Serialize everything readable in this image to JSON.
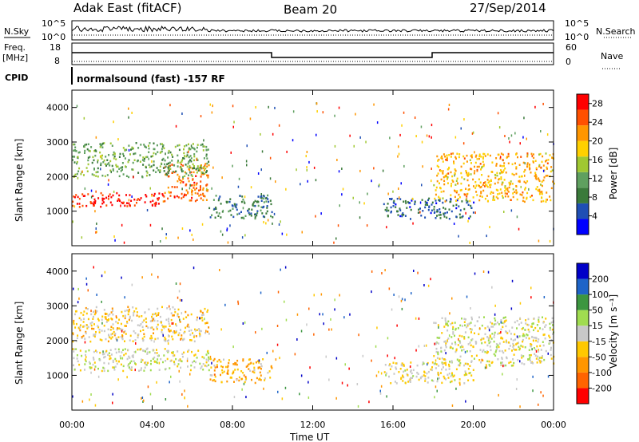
{
  "header": {
    "station": "Adak East (fitACF)",
    "beam": "Beam 20",
    "date": "27/Sep/2014"
  },
  "labels": {
    "n_sky": "N.Sky",
    "n_search": "N.Search",
    "freq": "Freq.",
    "freq_unit": "[MHz]",
    "nave": "Nave",
    "cpid": "CPID",
    "cpid_text": "normalsound (fast) -157 RF",
    "x_axis": "Time UT",
    "y_axis": "Slant Range [km]"
  },
  "noise_panel": {
    "left_ticks": [
      "10^5",
      "10^0"
    ],
    "right_ticks": [
      "10^5",
      "10^0"
    ]
  },
  "freq_panel": {
    "left_ticks": [
      "18",
      "8"
    ],
    "right_ticks": [
      "60",
      "0"
    ]
  },
  "colors": {
    "power_scale": [
      "#0000ff",
      "#1f4fb4",
      "#3a7a3a",
      "#5fa05f",
      "#a0c832",
      "#ffd000",
      "#ff9600",
      "#ff5000",
      "#ff0000"
    ],
    "velocity_scale": [
      "#ff0000",
      "#ff6400",
      "#ff9600",
      "#ffc800",
      "#c8c8c8",
      "#a0dc50",
      "#3c9640",
      "#1e64c8",
      "#0000c8"
    ]
  },
  "chart_data": [
    {
      "type": "heatmap",
      "title": "Power",
      "ylabel": "Slant Range [km]",
      "xlabel": "Time UT",
      "x_ticks": [
        "00:00",
        "04:00",
        "08:00",
        "12:00",
        "16:00",
        "20:00",
        "00:00"
      ],
      "y_ticks": [
        "1000",
        "2000",
        "3000",
        "4000"
      ],
      "ylim": [
        0,
        4500
      ],
      "xlim_hours": [
        0,
        24
      ],
      "colorbar": {
        "label": "Power [dB]",
        "unit": "dB",
        "ticks": [
          "4",
          "8",
          "12",
          "16",
          "20",
          "24",
          "28"
        ],
        "range": [
          0,
          30
        ]
      },
      "features": [
        {
          "name": "strong-band",
          "t_start": 0.0,
          "t_end": 4.5,
          "range_start": 1150,
          "range_end": 1550,
          "level": 28
        },
        {
          "name": "rising-band",
          "t_start": 4.5,
          "t_end": 6.8,
          "range_start": 1300,
          "range_end": 2400,
          "level": 24
        },
        {
          "name": "upper-scatter",
          "t_start": 0.0,
          "t_end": 6.8,
          "range_start": 2000,
          "range_end": 3000,
          "level": 12
        },
        {
          "name": "midday-echoes",
          "t_start": 6.8,
          "t_end": 10.0,
          "range_start": 800,
          "range_end": 1500,
          "level": 8
        },
        {
          "name": "afternoon-echoes",
          "t_start": 15.5,
          "t_end": 20.0,
          "range_start": 800,
          "range_end": 1400,
          "level": 6
        },
        {
          "name": "evening-band",
          "t_start": 18.0,
          "t_end": 24.0,
          "range_start": 1300,
          "range_end": 2700,
          "level": 20
        }
      ]
    },
    {
      "type": "heatmap",
      "title": "Velocity",
      "ylabel": "Slant Range [km]",
      "xlabel": "Time UT",
      "x_ticks": [
        "00:00",
        "04:00",
        "08:00",
        "12:00",
        "16:00",
        "20:00",
        "00:00"
      ],
      "y_ticks": [
        "1000",
        "2000",
        "3000",
        "4000"
      ],
      "ylim": [
        0,
        4500
      ],
      "xlim_hours": [
        0,
        24
      ],
      "colorbar": {
        "label": "Velocity [m s⁻¹]",
        "unit": "m s-1",
        "ticks": [
          "200",
          "100",
          "50",
          "15",
          "-15",
          "-50",
          "-100",
          "-200"
        ],
        "range": [
          -250,
          250
        ]
      },
      "features": [
        {
          "name": "ground-scatter",
          "t_start": 0.0,
          "t_end": 6.8,
          "range_start": 1150,
          "range_end": 1800,
          "level": 0
        },
        {
          "name": "upper-scatter",
          "t_start": 0.0,
          "t_end": 6.8,
          "range_start": 2000,
          "range_end": 3000,
          "level": -40
        },
        {
          "name": "midday-echoes",
          "t_start": 6.8,
          "t_end": 10.0,
          "range_start": 800,
          "range_end": 1500,
          "level": -80
        },
        {
          "name": "afternoon-echoes",
          "t_start": 15.5,
          "t_end": 20.0,
          "range_start": 800,
          "range_end": 1400,
          "level": -20
        },
        {
          "name": "evening-band",
          "t_start": 18.0,
          "t_end": 24.0,
          "range_start": 1300,
          "range_end": 2700,
          "level": 0
        }
      ]
    }
  ]
}
